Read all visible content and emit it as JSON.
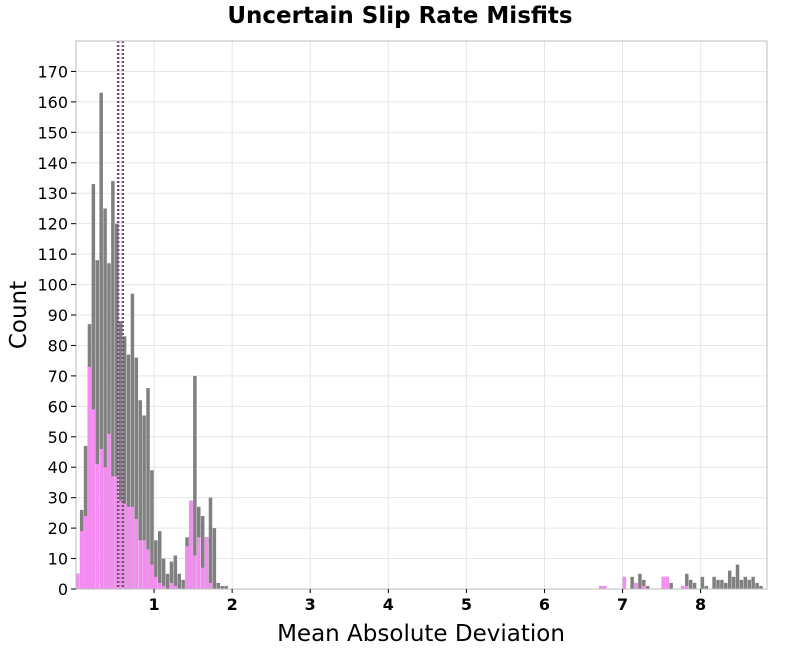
{
  "chart_data": {
    "type": "bar",
    "title": "Uncertain Slip Rate Misfits",
    "xlabel": "Mean Absolute Deviation",
    "ylabel": "Count",
    "xlim": [
      0.0,
      8.85
    ],
    "ylim": [
      0,
      180
    ],
    "xticks": [
      1,
      2,
      3,
      4,
      5,
      6,
      7,
      8
    ],
    "yticks": [
      0,
      10,
      20,
      30,
      40,
      50,
      60,
      70,
      80,
      90,
      100,
      110,
      120,
      130,
      140,
      150,
      160,
      170
    ],
    "grid": true,
    "colors": {
      "total": "#808080",
      "subset": "#f58cf2",
      "marker_line": "#7a4a7a",
      "grid": "#e6e6e6",
      "frame": "#bdbdbd"
    },
    "series": [
      {
        "x": [
          0.025,
          0.075,
          0.125,
          0.175,
          0.225,
          0.275,
          0.325,
          0.375,
          0.425,
          0.475,
          0.525,
          0.575,
          0.625,
          0.675,
          0.725,
          0.775,
          0.825,
          0.875,
          0.925,
          0.975,
          1.025,
          1.075,
          1.125,
          1.175,
          1.225,
          1.275,
          1.325,
          1.375,
          1.425,
          1.475,
          1.525,
          1.575,
          1.625,
          1.675,
          1.725,
          1.775,
          1.825,
          1.875,
          1.925,
          6.725,
          6.775,
          7.025,
          7.125,
          7.175,
          7.225,
          7.275,
          7.325,
          7.525,
          7.575,
          7.625,
          7.775,
          7.825,
          7.875,
          7.925,
          8.025,
          8.075,
          8.175,
          8.225,
          8.275,
          8.325,
          8.375,
          8.425,
          8.475,
          8.525,
          8.575,
          8.625,
          8.675,
          8.725,
          8.775
        ],
        "values": [
          5,
          26,
          47,
          87,
          133,
          108,
          163,
          125,
          107,
          134,
          120,
          88,
          83,
          77,
          97,
          76,
          62,
          57,
          66,
          39,
          16,
          19,
          10,
          5,
          9,
          11,
          5,
          3,
          17,
          29,
          70,
          27,
          24,
          17,
          30,
          20,
          2,
          1,
          1,
          1,
          1,
          4,
          4,
          2,
          5,
          3,
          1,
          4,
          4,
          2,
          1,
          5,
          3,
          2,
          4,
          1,
          4,
          3,
          3,
          2,
          6,
          4,
          8,
          3,
          4,
          3,
          4,
          2,
          1
        ]
      },
      {
        "x": [
          0.025,
          0.075,
          0.125,
          0.175,
          0.225,
          0.275,
          0.325,
          0.375,
          0.425,
          0.475,
          0.525,
          0.575,
          0.625,
          0.675,
          0.725,
          0.775,
          0.825,
          0.875,
          0.925,
          0.975,
          1.025,
          1.075,
          1.125,
          1.175,
          1.225,
          1.275,
          1.325,
          1.375,
          1.425,
          1.475,
          1.525,
          1.575,
          1.625,
          1.675,
          1.725,
          1.775,
          1.825,
          1.875,
          1.925,
          6.725,
          6.775,
          7.025,
          7.125,
          7.175,
          7.225,
          7.275,
          7.325,
          7.525,
          7.575,
          7.625,
          7.775,
          7.825,
          7.875,
          7.925,
          8.025,
          8.075,
          8.175,
          8.225,
          8.275,
          8.325,
          8.375,
          8.425,
          8.475,
          8.525,
          8.575,
          8.625,
          8.675,
          8.725,
          8.775
        ],
        "values": [
          5,
          19,
          24,
          73,
          59,
          41,
          46,
          40,
          51,
          37,
          37,
          29,
          28,
          27,
          27,
          23,
          16,
          16,
          13,
          8,
          4,
          2,
          1,
          0,
          2,
          1,
          0,
          0,
          14,
          29,
          11,
          17,
          7,
          17,
          2,
          0,
          0,
          0,
          0,
          1,
          1,
          4,
          0,
          2,
          0,
          1,
          0,
          4,
          4,
          0,
          1,
          1,
          0,
          0,
          0,
          0,
          0,
          0,
          0,
          0,
          0,
          0,
          0,
          0,
          0,
          0,
          0,
          0,
          0
        ]
      }
    ],
    "markers": {
      "type": "vertical-dotted-lines",
      "x": [
        0.54,
        0.6
      ]
    }
  }
}
